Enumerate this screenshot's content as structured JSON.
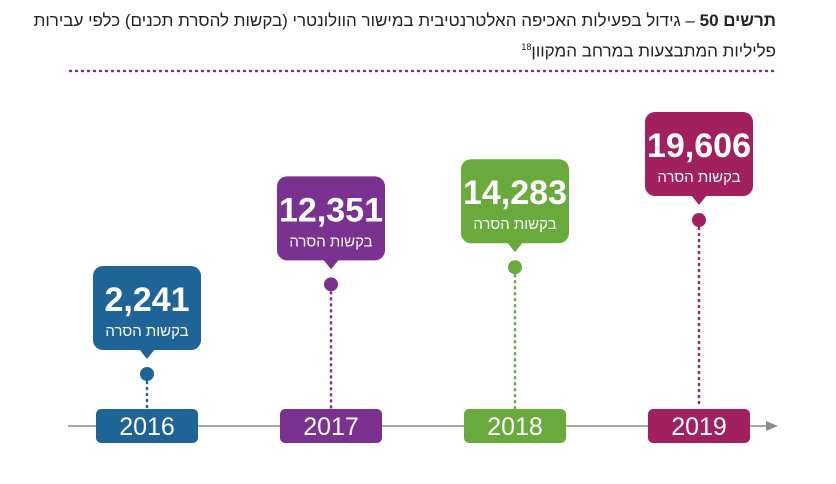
{
  "title": {
    "label": "תרשים 50",
    "line1": "– גידול בפעילות האכיפה האלטרנטיבית במישור הוולונטרי (בקשות להסרת תכנים) כלפי עבירות",
    "line2": "פליליות המתבצעות במרחב המקוון",
    "footnote": "18"
  },
  "colors": {
    "2016": "#1f6496",
    "2017": "#7a3190",
    "2018": "#68ab3c",
    "2019": "#a3205f",
    "axis": "#8c8c8c",
    "divider": "#7a3190"
  },
  "chart_data": {
    "type": "timeline",
    "categories": [
      "2016",
      "2017",
      "2018",
      "2019"
    ],
    "values": [
      2241,
      12351,
      14283,
      19606
    ],
    "value_labels": [
      "2,241",
      "12,351",
      "14,283",
      "19,606"
    ],
    "series_label": "בקשות הסרה",
    "legend": "none",
    "grid": false
  }
}
